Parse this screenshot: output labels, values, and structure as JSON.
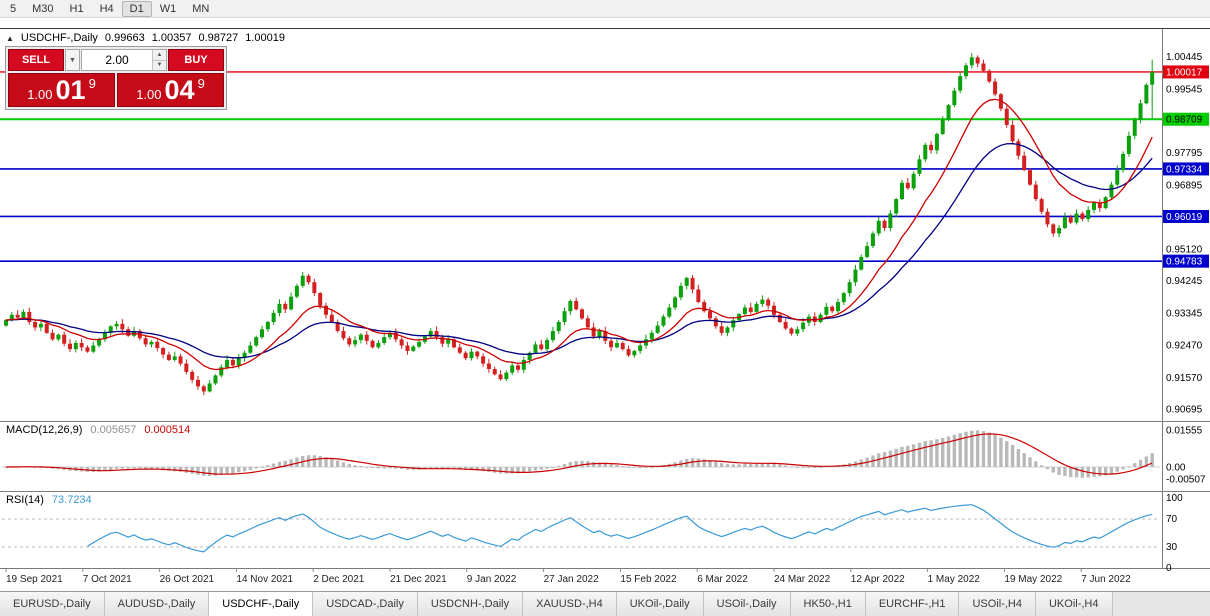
{
  "toolbar": {
    "timeframes": [
      "5",
      "M30",
      "H1",
      "H4",
      "D1",
      "W1",
      "MN"
    ],
    "active": "D1"
  },
  "symbol_header": {
    "collapse_icon": "▲",
    "symbol": "USDCHF-,Daily",
    "open": "0.99663",
    "high": "1.00357",
    "low": "0.98727",
    "close": "1.00019"
  },
  "trade_panel": {
    "sell_label": "SELL",
    "buy_label": "BUY",
    "volume": "2.00",
    "bid_small": "1.00",
    "bid_big": "01",
    "bid_sup": "9",
    "ask_small": "1.00",
    "ask_big": "04",
    "ask_sup": "9"
  },
  "price_axis": {
    "labels": [
      "1.00445",
      "0.99545",
      "0.97795",
      "0.96895",
      "0.95120",
      "0.94245",
      "0.93345",
      "0.92470",
      "0.91570",
      "0.90695"
    ]
  },
  "hlines": [
    {
      "price": 1.00017,
      "label": "1.00017",
      "color": "#e00010",
      "text_color": "#ffffff",
      "width": 1.4
    },
    {
      "price": 0.98709,
      "label": "0.98709",
      "color": "#00cc00",
      "text_color": "#000000",
      "width": 2
    },
    {
      "price": 0.97334,
      "label": "0.97334",
      "color": "#0000cc",
      "text_color": "#ffffff",
      "width": 1.6
    },
    {
      "price": 0.96019,
      "label": "0.96019",
      "color": "#0000cc",
      "text_color": "#ffffff",
      "width": 1.6
    },
    {
      "price": 0.94783,
      "label": "0.94783",
      "color": "#0000cc",
      "text_color": "#ffffff",
      "width": 1.6
    }
  ],
  "macd": {
    "label": "MACD(12,26,9)",
    "value": "0.005657",
    "signal": "0.000514",
    "axis": [
      "0.01555",
      "0.00",
      "-0.00507"
    ],
    "histogram_color": "#b9b9b9",
    "signal_color": "#cc0000"
  },
  "rsi": {
    "label": "RSI(14)",
    "value": "73.7234",
    "axis": [
      "100",
      "70",
      "30",
      "0"
    ],
    "levels": [
      70,
      30
    ],
    "line_color": "#3a9ad9"
  },
  "date_axis": [
    "19 Sep 2021",
    "7 Oct 2021",
    "26 Oct 2021",
    "14 Nov 2021",
    "2 Dec 2021",
    "21 Dec 2021",
    "9 Jan 2022",
    "27 Jan 2022",
    "15 Feb 2022",
    "6 Mar 2022",
    "24 Mar 2022",
    "12 Apr 2022",
    "1 May 2022",
    "19 May 2022",
    "7 Jun 2022"
  ],
  "tabs": [
    "EURUSD-,Daily",
    "AUDUSD-,Daily",
    "USDCHF-,Daily",
    "USDCAD-,Daily",
    "USDCNH-,Daily",
    "XAUUSD-,H4",
    "UKOil-,Daily",
    "USOil-,Daily",
    "HK50-,H1",
    "EURCHF-,H1",
    "USOil-,H4",
    "UKOil-,H4"
  ],
  "active_tab": "USDCHF-,Daily",
  "chart_data": {
    "type": "candlestick",
    "symbol": "USDCHF",
    "timeframe": "Daily",
    "up_color": "#0ca00c",
    "down_color": "#d32020",
    "ema_fast_color": "#cc0000",
    "ema_slow_color": "#000080",
    "price_range": [
      0.90361,
      1.01205
    ],
    "last_candle": {
      "open": 0.99663,
      "high": 1.00357,
      "low": 0.98727,
      "close": 1.00019
    },
    "closes": [
      0.9315,
      0.933,
      0.9322,
      0.9338,
      0.931,
      0.9295,
      0.9305,
      0.928,
      0.9262,
      0.9275,
      0.925,
      0.9235,
      0.9252,
      0.924,
      0.9228,
      0.9245,
      0.9262,
      0.928,
      0.9298,
      0.9305,
      0.929,
      0.9272,
      0.9285,
      0.9265,
      0.9248,
      0.9255,
      0.9238,
      0.922,
      0.9205,
      0.9215,
      0.9195,
      0.9172,
      0.915,
      0.9132,
      0.9118,
      0.914,
      0.9162,
      0.9185,
      0.9205,
      0.919,
      0.921,
      0.9225,
      0.9245,
      0.9268,
      0.929,
      0.931,
      0.9335,
      0.936,
      0.9345,
      0.938,
      0.941,
      0.9438,
      0.942,
      0.939,
      0.9355,
      0.933,
      0.931,
      0.9285,
      0.9265,
      0.9248,
      0.926,
      0.9275,
      0.9258,
      0.924,
      0.9252,
      0.9268,
      0.928,
      0.9262,
      0.9245,
      0.923,
      0.9242,
      0.9255,
      0.927,
      0.9285,
      0.9268,
      0.925,
      0.9262,
      0.924,
      0.9225,
      0.921,
      0.9228,
      0.9215,
      0.9195,
      0.918,
      0.9165,
      0.9152,
      0.917,
      0.919,
      0.9178,
      0.9205,
      0.9225,
      0.9248,
      0.9235,
      0.926,
      0.9285,
      0.931,
      0.934,
      0.9368,
      0.9345,
      0.932,
      0.9295,
      0.927,
      0.9285,
      0.9258,
      0.924,
      0.9252,
      0.9235,
      0.9218,
      0.923,
      0.9245,
      0.9262,
      0.928,
      0.93,
      0.9325,
      0.935,
      0.9378,
      0.941,
      0.9432,
      0.94,
      0.9365,
      0.934,
      0.932,
      0.9298,
      0.928,
      0.9295,
      0.9315,
      0.9332,
      0.935,
      0.9338,
      0.936,
      0.9372,
      0.9355,
      0.933,
      0.931,
      0.9292,
      0.9278,
      0.929,
      0.9308,
      0.9325,
      0.931,
      0.933,
      0.9352,
      0.934,
      0.9365,
      0.939,
      0.942,
      0.9455,
      0.949,
      0.952,
      0.9555,
      0.959,
      0.957,
      0.961,
      0.965,
      0.9695,
      0.968,
      0.972,
      0.976,
      0.98,
      0.9785,
      0.983,
      0.987,
      0.991,
      0.995,
      0.999,
      1.002,
      1.0042,
      1.0025,
      1.0005,
      0.9975,
      0.994,
      0.99,
      0.9855,
      0.981,
      0.977,
      0.973,
      0.969,
      0.965,
      0.9615,
      0.958,
      0.9555,
      0.957,
      0.96,
      0.9585,
      0.961,
      0.9595,
      0.962,
      0.964,
      0.9625,
      0.9655,
      0.969,
      0.973,
      0.9775,
      0.9825,
      0.987,
      0.9915,
      0.9966,
      1.0002
    ]
  }
}
